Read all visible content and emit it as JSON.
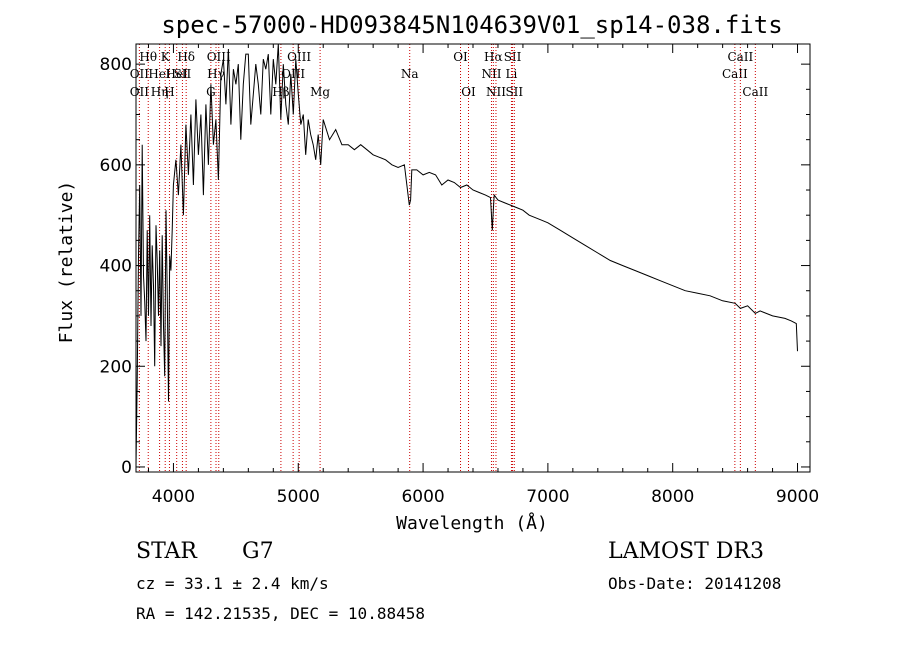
{
  "chart_data": {
    "type": "line",
    "title": "spec-57000-HD093845N104639V01_sp14-038.fits",
    "xlabel": "Wavelength (Å)",
    "ylabel": "Flux (relative)",
    "xlim": [
      3700,
      9100
    ],
    "ylim": [
      -10,
      840
    ],
    "x_ticks": [
      4000,
      5000,
      6000,
      7000,
      8000,
      9000
    ],
    "y_ticks": [
      0,
      200,
      400,
      600,
      800
    ],
    "grid": false,
    "series": [
      {
        "name": "flux",
        "x": [
          3700,
          3710,
          3720,
          3730,
          3740,
          3750,
          3760,
          3770,
          3780,
          3790,
          3800,
          3810,
          3820,
          3830,
          3840,
          3850,
          3860,
          3870,
          3880,
          3890,
          3900,
          3910,
          3920,
          3930,
          3940,
          3950,
          3960,
          3970,
          3980,
          3990,
          4000,
          4020,
          4040,
          4060,
          4080,
          4100,
          4120,
          4140,
          4160,
          4180,
          4200,
          4220,
          4240,
          4260,
          4280,
          4300,
          4320,
          4340,
          4360,
          4380,
          4400,
          4420,
          4440,
          4460,
          4480,
          4500,
          4520,
          4540,
          4560,
          4580,
          4600,
          4620,
          4640,
          4660,
          4680,
          4700,
          4720,
          4740,
          4760,
          4780,
          4800,
          4820,
          4840,
          4860,
          4880,
          4900,
          4920,
          4940,
          4960,
          4980,
          5000,
          5020,
          5040,
          5060,
          5080,
          5100,
          5120,
          5140,
          5160,
          5180,
          5200,
          5250,
          5300,
          5350,
          5400,
          5450,
          5500,
          5550,
          5600,
          5650,
          5700,
          5750,
          5800,
          5850,
          5890,
          5900,
          5910,
          5950,
          6000,
          6050,
          6100,
          6150,
          6200,
          6250,
          6300,
          6350,
          6400,
          6450,
          6500,
          6540,
          6555,
          6563,
          6570,
          6600,
          6650,
          6700,
          6750,
          6800,
          6850,
          6900,
          6950,
          7000,
          7100,
          7200,
          7300,
          7400,
          7500,
          7600,
          7700,
          7800,
          7900,
          8000,
          8100,
          8200,
          8300,
          8400,
          8500,
          8542,
          8600,
          8662,
          8700,
          8800,
          8900,
          8950,
          8990,
          9000
        ],
        "values": [
          0,
          170,
          420,
          560,
          300,
          640,
          380,
          330,
          250,
          470,
          300,
          500,
          280,
          440,
          360,
          200,
          480,
          410,
          300,
          430,
          240,
          460,
          280,
          180,
          510,
          350,
          130,
          420,
          390,
          470,
          560,
          610,
          540,
          640,
          500,
          680,
          580,
          700,
          560,
          730,
          620,
          700,
          540,
          720,
          600,
          760,
          640,
          690,
          570,
          780,
          810,
          720,
          830,
          680,
          790,
          760,
          800,
          650,
          760,
          820,
          820,
          680,
          740,
          800,
          760,
          700,
          810,
          790,
          820,
          700,
          810,
          760,
          840,
          690,
          800,
          720,
          680,
          780,
          700,
          810,
          740,
          680,
          700,
          620,
          690,
          660,
          640,
          610,
          660,
          600,
          690,
          650,
          670,
          640,
          640,
          630,
          640,
          630,
          620,
          615,
          610,
          600,
          595,
          600,
          520,
          530,
          590,
          590,
          580,
          585,
          580,
          560,
          570,
          565,
          555,
          560,
          550,
          545,
          540,
          535,
          470,
          510,
          540,
          530,
          525,
          520,
          515,
          510,
          500,
          495,
          490,
          485,
          470,
          455,
          440,
          425,
          410,
          400,
          390,
          380,
          370,
          360,
          350,
          345,
          340,
          330,
          325,
          315,
          320,
          305,
          310,
          300,
          295,
          290,
          285,
          230
        ]
      }
    ],
    "line_markers": [
      {
        "wavelength": 3727,
        "label": "OII",
        "row": 1
      },
      {
        "wavelength": 3727,
        "label": "OII",
        "row": 2
      },
      {
        "wavelength": 3798,
        "label": "Hθ",
        "row": 0
      },
      {
        "wavelength": 3889,
        "label": "HeI",
        "row": 1
      },
      {
        "wavelength": 3889,
        "label": "Hη",
        "row": 2
      },
      {
        "wavelength": 3934,
        "label": "K",
        "row": 0
      },
      {
        "wavelength": 3968,
        "label": "H",
        "row": 2
      },
      {
        "wavelength": 4026,
        "label": "HeI",
        "row": 1
      },
      {
        "wavelength": 4102,
        "label": "Hδ",
        "row": 0
      },
      {
        "wavelength": 4072,
        "label": "SII",
        "row": 1
      },
      {
        "wavelength": 4300,
        "label": "G",
        "row": 2
      },
      {
        "wavelength": 4341,
        "label": "Hγ",
        "row": 1
      },
      {
        "wavelength": 4363,
        "label": "OIII",
        "row": 0
      },
      {
        "wavelength": 4861,
        "label": "Hβ",
        "row": 2
      },
      {
        "wavelength": 4959,
        "label": "OIII",
        "row": 1
      },
      {
        "wavelength": 5007,
        "label": "OIII",
        "row": 0
      },
      {
        "wavelength": 5175,
        "label": "Mg",
        "row": 2
      },
      {
        "wavelength": 5893,
        "label": "Na",
        "row": 1
      },
      {
        "wavelength": 6300,
        "label": "OI",
        "row": 0
      },
      {
        "wavelength": 6364,
        "label": "OI",
        "row": 2
      },
      {
        "wavelength": 6548,
        "label": "NII",
        "row": 1
      },
      {
        "wavelength": 6563,
        "label": "Hα",
        "row": 0
      },
      {
        "wavelength": 6584,
        "label": "NII",
        "row": 2
      },
      {
        "wavelength": 6708,
        "label": "Li",
        "row": 1
      },
      {
        "wavelength": 6717,
        "label": "SII",
        "row": 0
      },
      {
        "wavelength": 6731,
        "label": "SII",
        "row": 2
      },
      {
        "wavelength": 8498,
        "label": "CaII",
        "row": 1
      },
      {
        "wavelength": 8542,
        "label": "CaII",
        "row": 0
      },
      {
        "wavelength": 8662,
        "label": "CaII",
        "row": 2
      }
    ]
  },
  "info": {
    "object_type": "STAR",
    "subclass": "G7",
    "survey": "LAMOST DR3",
    "cz": "cz = 33.1 ± 2.4 km/s",
    "obs_date": "Obs-Date: 20141208",
    "coords": "RA = 142.21535, DEC =  10.88458"
  }
}
